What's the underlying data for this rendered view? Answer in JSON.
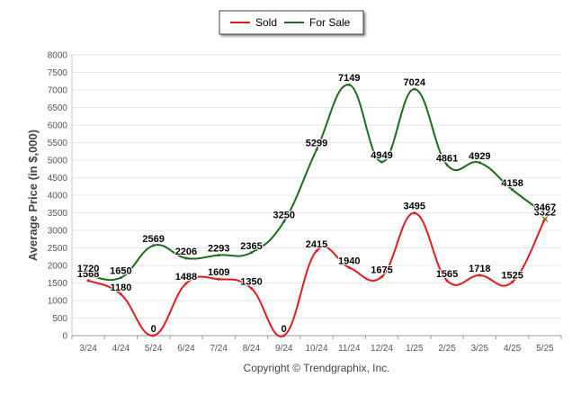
{
  "chart_data": {
    "type": "line",
    "title": "",
    "xlabel": "",
    "ylabel": "Average Price (in $,000)",
    "categories": [
      "3/24",
      "4/24",
      "5/24",
      "6/24",
      "7/24",
      "8/24",
      "9/24",
      "10/24",
      "11/24",
      "12/24",
      "1/25",
      "2/25",
      "3/25",
      "4/25",
      "5/25"
    ],
    "ylim": [
      0,
      8000
    ],
    "yticks": [
      0,
      500,
      1000,
      1500,
      2000,
      2500,
      3000,
      3500,
      4000,
      4500,
      5000,
      5500,
      6000,
      6500,
      7000,
      7500,
      8000
    ],
    "grid": true,
    "legend_position": "top-center",
    "series": [
      {
        "name": "Sold",
        "color": "#e31a1c",
        "values": [
          1568,
          1180,
          0,
          1488,
          1609,
          1350,
          0,
          2415,
          1940,
          1675,
          3495,
          1565,
          1718,
          1525,
          3322
        ]
      },
      {
        "name": "For Sale",
        "color": "#1a6e1a",
        "values": [
          1720,
          1650,
          2569,
          2206,
          2293,
          2365,
          3250,
          5299,
          7149,
          4949,
          7024,
          4861,
          4929,
          4158,
          3467
        ]
      }
    ],
    "credit": "Copyright © Trendgraphix, Inc."
  }
}
